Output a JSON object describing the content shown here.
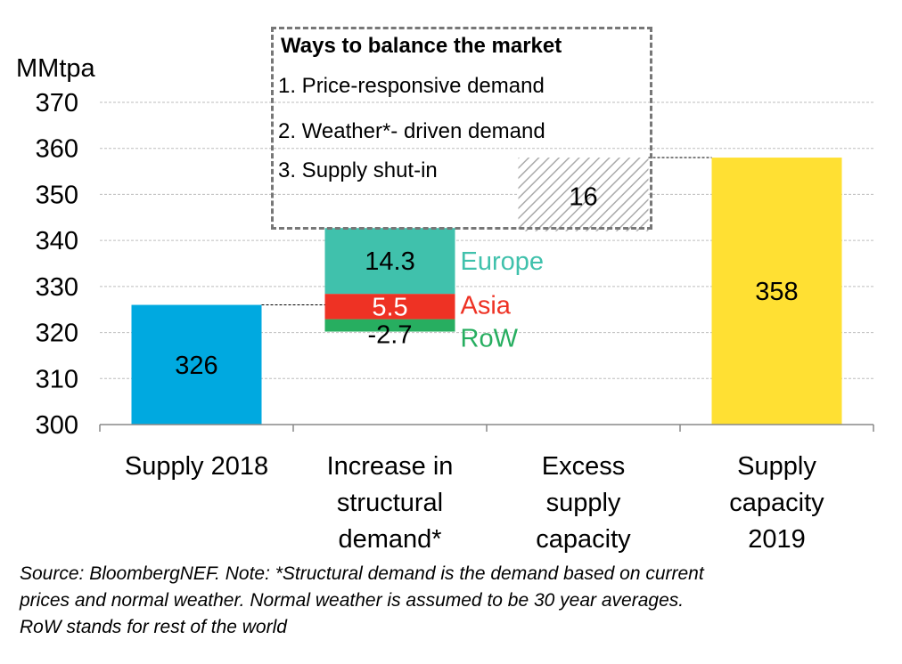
{
  "chart_data": {
    "type": "waterfall",
    "ylabel": "MMtpa",
    "ylim": [
      300,
      370
    ],
    "yticks": [
      300,
      310,
      320,
      330,
      340,
      350,
      360,
      370
    ],
    "grid": true,
    "categories": [
      "Supply 2018",
      "Increase in structural demand*",
      "Excess supply capacity",
      "Supply capacity 2019"
    ],
    "category_lines": [
      [
        "Supply 2018"
      ],
      [
        "Increase in",
        "structural",
        "demand*"
      ],
      [
        "Excess",
        "supply",
        "capacity"
      ],
      [
        "Supply",
        "capacity",
        "2019"
      ]
    ],
    "bars": [
      {
        "category": "Supply 2018",
        "base": 300,
        "value": 326,
        "label": "326",
        "color": "#00A9E0"
      },
      {
        "category": "Supply capacity 2019",
        "base": 300,
        "value": 358,
        "label": "358",
        "color": "#FFE033"
      }
    ],
    "segments": [
      {
        "name": "RoW",
        "bottom": 320.2,
        "top": 322.9,
        "label": "-2.7",
        "color": "#27AE60"
      },
      {
        "name": "Asia",
        "bottom": 322.9,
        "top": 328.4,
        "label": "5.5",
        "color": "#EE3224"
      },
      {
        "name": "Europe",
        "bottom": 328.4,
        "top": 342.7,
        "label": "14.3",
        "color": "#40C1AC"
      }
    ],
    "excess": {
      "bottom": 342,
      "top": 358,
      "label": "16",
      "pattern": "hatched"
    },
    "connectors": [
      326,
      358
    ]
  },
  "callout": {
    "title": "Ways to balance the market",
    "items": [
      "1.  Price-responsive demand",
      "2.  Weather*- driven demand",
      "3.  Supply shut-in"
    ]
  },
  "source_lines": [
    "Source: BloombergNEF. Note: *Structural demand is the demand based on current",
    "prices and normal weather. Normal weather is assumed to be 30 year averages.",
    "RoW stands for rest of the world"
  ]
}
